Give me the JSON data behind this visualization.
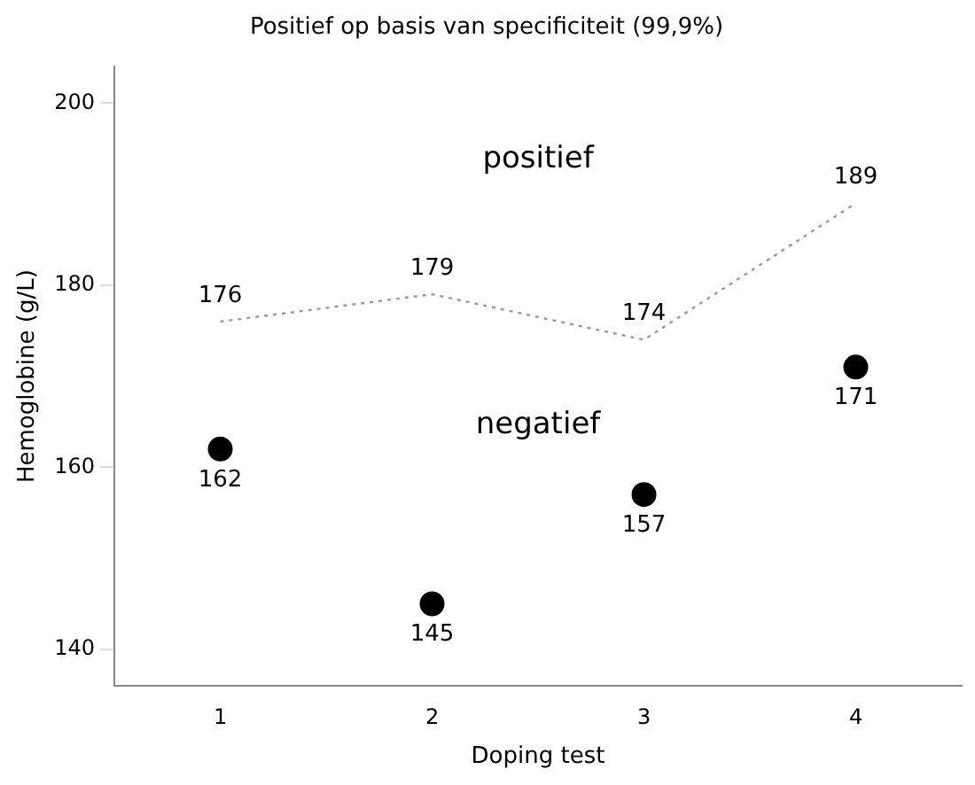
{
  "chart_data": {
    "type": "line",
    "title": "Positief op basis van specificiteit (99,9%)",
    "xlabel": "Doping test",
    "ylabel": "Hemoglobine (g/L)",
    "x": [
      1,
      2,
      3,
      4
    ],
    "series": [
      {
        "color": "#999999",
        "values": [
          176,
          179,
          174,
          189
        ],
        "line_style": "dotted",
        "marker": "none"
      },
      {
        "type": "scatter",
        "color": "#000000",
        "values": [
          162,
          145,
          157,
          171
        ],
        "marker": "circle"
      }
    ],
    "xlim": [
      0.5,
      4.5
    ],
    "xticks": [
      1,
      2,
      3,
      4
    ],
    "ylim": [
      136,
      204
    ],
    "yticks": [
      140,
      160,
      180,
      200
    ],
    "annotations": [
      "positief",
      "negatief"
    ],
    "data_labels": true,
    "grid": false,
    "legend": false
  }
}
